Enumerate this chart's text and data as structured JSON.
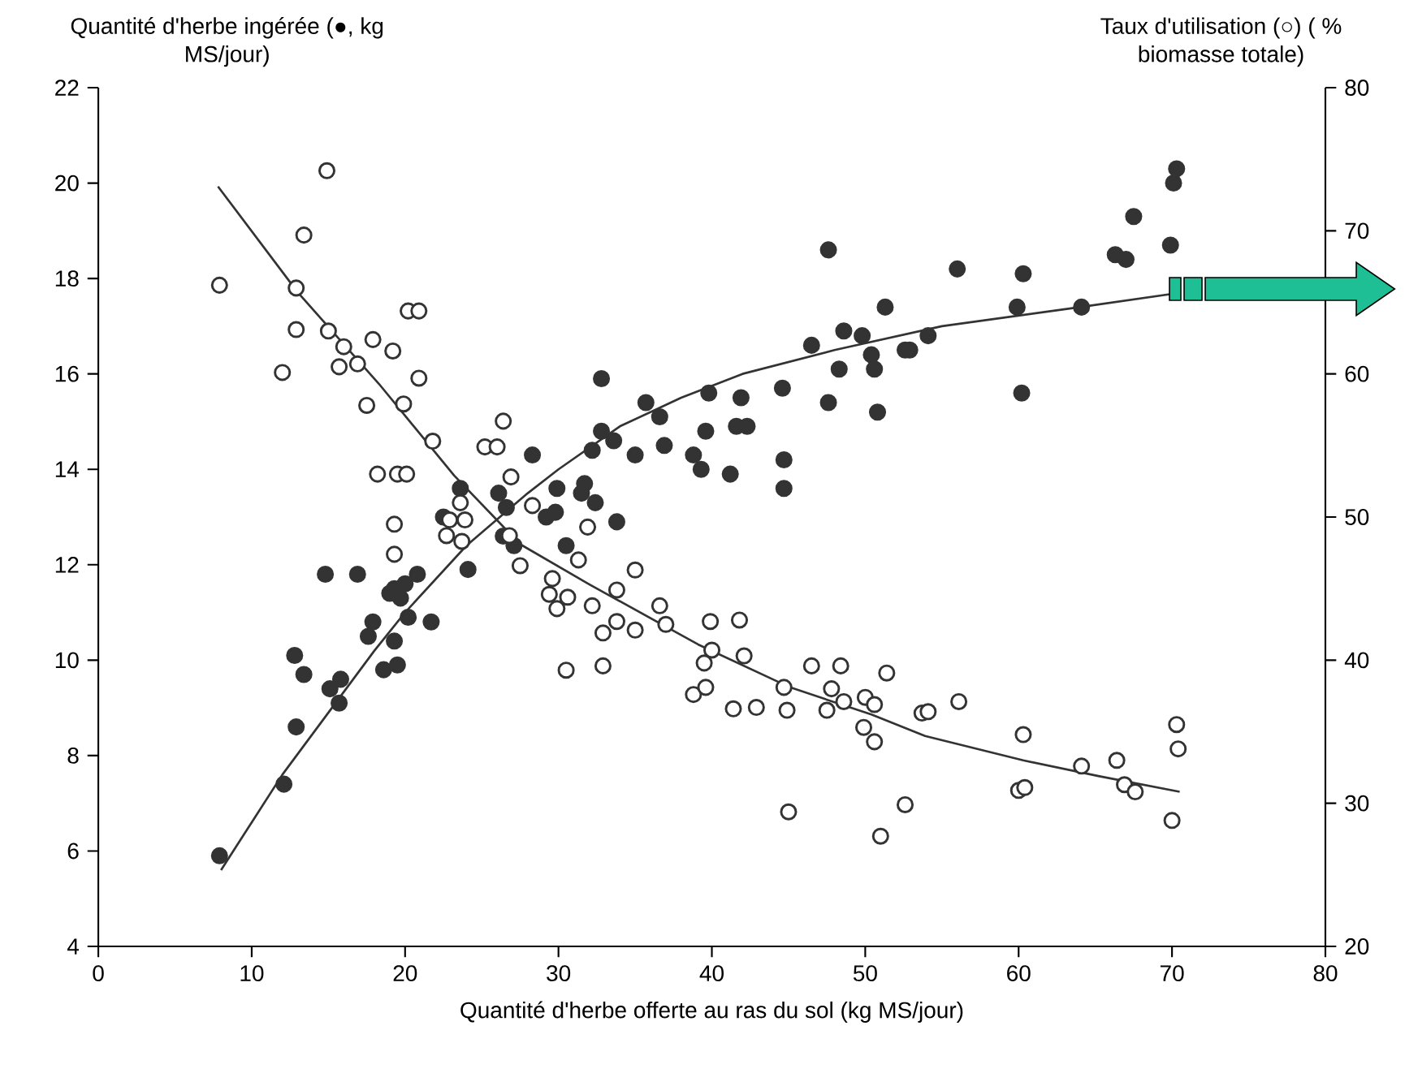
{
  "chart_data": {
    "type": "line",
    "xlabel": "Quantité d'herbe offerte au ras du sol (kg MS/jour)",
    "ylabel": "Quantité d'herbe ingérée (●, kg MS/jour)",
    "y2label": "Taux d'utilisation (○) ( % biomasse totale)",
    "xlim": [
      0,
      80
    ],
    "ylim": [
      4,
      22
    ],
    "y2lim": [
      20,
      80
    ],
    "xticks": [
      0,
      10,
      20,
      30,
      40,
      50,
      60,
      70,
      80
    ],
    "yticks": [
      4,
      6,
      8,
      10,
      12,
      14,
      16,
      18,
      20,
      22
    ],
    "y2ticks": [
      20,
      30,
      40,
      50,
      60,
      70,
      80
    ],
    "series": [
      {
        "type": "scatter",
        "marker": "circle",
        "color": "#333333",
        "axis": "y",
        "x": [
          23.6,
          22.5,
          26.1,
          26.6,
          27.1,
          26.4,
          29.8,
          31.5,
          19.0,
          7.9,
          12.1,
          12.9,
          15.7,
          15.1,
          15.8,
          13.4,
          12.8,
          18.6,
          19.5,
          17.6,
          17.9,
          19.3,
          21.7,
          20.2,
          14.8,
          16.9,
          19.7,
          20.0,
          20.8,
          24.1,
          19.3,
          47.6,
          51.3,
          48.6,
          49.8,
          46.5,
          52.6,
          50.4,
          50.6,
          48.3,
          47.6,
          50.8,
          44.6,
          41.9,
          39.8,
          42.3,
          41.6,
          39.6,
          36.9,
          44.7,
          44.7,
          41.2,
          39.3,
          38.8,
          32.8,
          35.7,
          36.6,
          35.0,
          32.8,
          33.6,
          32.2,
          28.3,
          31.7,
          32.4,
          29.9,
          29.2,
          33.8,
          30.5,
          70.1,
          70.3,
          67.5,
          69.9,
          66.3,
          67.0,
          56.0,
          60.3,
          59.9,
          64.1,
          54.1,
          52.9,
          60.2
        ],
        "values": [
          13.6,
          13.0,
          13.5,
          13.2,
          12.4,
          12.6,
          13.1,
          13.5,
          11.4,
          5.9,
          7.4,
          8.6,
          9.1,
          9.4,
          9.6,
          9.7,
          10.1,
          9.8,
          9.9,
          10.5,
          10.8,
          10.4,
          10.8,
          10.9,
          11.8,
          11.8,
          11.3,
          11.6,
          11.8,
          11.9,
          11.5,
          18.6,
          17.4,
          16.9,
          16.8,
          16.6,
          16.5,
          16.4,
          16.1,
          16.1,
          15.4,
          15.2,
          15.7,
          15.5,
          15.6,
          14.9,
          14.9,
          14.8,
          14.5,
          14.2,
          13.6,
          13.9,
          14.0,
          14.3,
          15.9,
          15.4,
          15.1,
          14.3,
          14.8,
          14.6,
          14.4,
          14.3,
          13.7,
          13.3,
          13.6,
          13.0,
          12.9,
          12.4,
          20.0,
          20.3,
          19.3,
          18.7,
          18.5,
          18.4,
          18.2,
          18.1,
          17.4,
          17.4,
          16.8,
          16.5,
          15.6
        ]
      },
      {
        "type": "scatter",
        "marker": "circle",
        "color": "#333333",
        "axis": "y2",
        "x": [
          22.9,
          23.9,
          22.7,
          23.7,
          23.6,
          28.3,
          26.8,
          27.5,
          31.9,
          31.3,
          29.6,
          30.6,
          19.3,
          14.9,
          13.4,
          7.9,
          12.9,
          20.2,
          20.9,
          12.9,
          15.0,
          17.9,
          16.0,
          19.2,
          16.9,
          15.7,
          12.0,
          20.9,
          17.5,
          19.9,
          26.4,
          25.2,
          26.0,
          21.8,
          18.2,
          19.5,
          20.1,
          26.9,
          19.3,
          35.0,
          29.4,
          29.9,
          32.2,
          33.8,
          36.6,
          33.8,
          32.9,
          35.0,
          37.0,
          30.5,
          32.9,
          39.9,
          41.8,
          40.0,
          39.5,
          42.1,
          38.8,
          39.6,
          41.4,
          42.9,
          44.7,
          44.9,
          46.5,
          48.4,
          47.8,
          48.6,
          47.5,
          50.0,
          50.6,
          51.4,
          49.9,
          50.6,
          53.7,
          45.0,
          52.6,
          51.0,
          54.1,
          56.1,
          60.3,
          60.0,
          60.4,
          64.1,
          66.4,
          66.9,
          67.6,
          70.3,
          70.4,
          70.0
        ],
        "values": [
          49.8,
          49.8,
          48.7,
          48.3,
          51.0,
          50.8,
          48.7,
          46.6,
          49.3,
          47.0,
          45.7,
          44.4,
          47.4,
          74.2,
          69.7,
          66.2,
          66.0,
          64.4,
          64.4,
          63.1,
          63.0,
          62.4,
          61.9,
          61.6,
          60.7,
          60.5,
          60.1,
          59.7,
          57.8,
          57.9,
          56.7,
          54.9,
          54.9,
          55.3,
          53.0,
          53.0,
          53.0,
          52.8,
          49.5,
          46.3,
          44.6,
          43.6,
          43.8,
          44.9,
          43.8,
          42.7,
          41.9,
          42.1,
          42.5,
          39.3,
          39.6,
          42.7,
          42.8,
          40.7,
          39.8,
          40.3,
          37.6,
          38.1,
          36.6,
          36.7,
          38.1,
          36.5,
          39.6,
          39.6,
          38.0,
          37.1,
          36.5,
          37.4,
          36.9,
          39.1,
          35.3,
          34.3,
          36.3,
          29.4,
          29.9,
          27.7,
          36.4,
          37.1,
          34.8,
          30.9,
          31.1,
          32.6,
          33.0,
          31.3,
          30.8,
          35.5,
          33.8,
          28.8
        ]
      },
      {
        "color": "#333333",
        "axis": "y",
        "x": [
          8,
          10,
          12,
          15,
          18,
          20,
          24,
          28,
          30,
          34,
          38,
          42,
          48,
          55,
          64,
          70.5
        ],
        "values": [
          5.6,
          6.6,
          7.6,
          8.9,
          10.2,
          11.0,
          12.4,
          13.5,
          14.0,
          14.9,
          15.5,
          16.0,
          16.5,
          17.0,
          17.4,
          17.7
        ]
      },
      {
        "color": "#333333",
        "axis": "y2",
        "x": [
          7.8,
          13,
          18.3,
          23.2,
          27.5,
          32,
          39.1,
          45.1,
          50.4,
          53.9,
          60.3,
          65.2,
          70.5
        ],
        "values": [
          73.1,
          65.7,
          59.3,
          52.9,
          48.1,
          45.3,
          41.1,
          38.1,
          36.2,
          34.7,
          33.0,
          31.9,
          30.8
        ]
      }
    ]
  }
}
